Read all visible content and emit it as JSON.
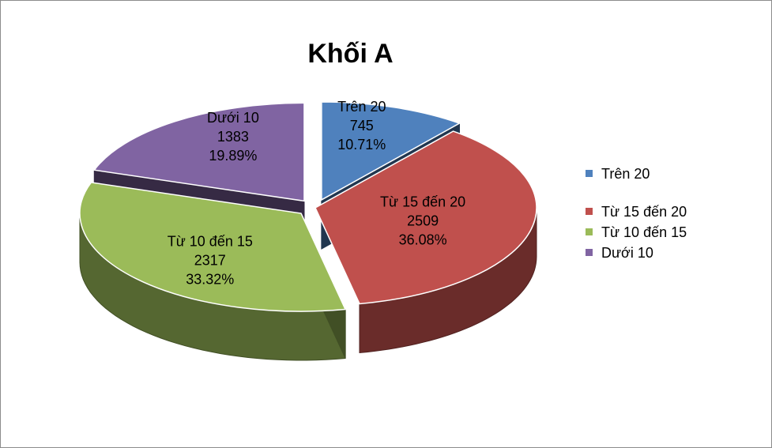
{
  "chart_data": {
    "type": "pie",
    "title": "Khối A",
    "slices": [
      {
        "name": "Trên 20",
        "value": 745,
        "percent": "10.71%",
        "color": "#4f81bd",
        "exploded": true
      },
      {
        "name": "Từ 15 đến 20",
        "value": 2509,
        "percent": "36.08%",
        "color": "#c0504d",
        "exploded": false
      },
      {
        "name": "Từ 10 đến 15",
        "value": 2317,
        "percent": "33.32%",
        "color": "#9bbb59",
        "exploded": true
      },
      {
        "name": "Dưới 10",
        "value": 1383,
        "percent": "19.89%",
        "color": "#8064a2",
        "exploded": true
      }
    ],
    "legend": {
      "placement": "right",
      "items": [
        "Trên 20",
        "Từ 15 đến 20",
        "Từ 10 đến 15",
        "Dưới 10"
      ]
    },
    "three_d": true
  }
}
